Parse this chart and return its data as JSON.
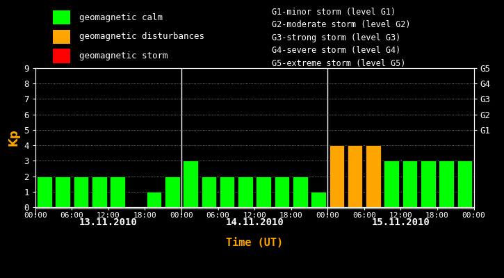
{
  "background_color": "#000000",
  "text_color": "#ffffff",
  "orange_color": "#FFA500",
  "green_color": "#00FF00",
  "red_color": "#FF0000",
  "kp_day1": [
    2,
    2,
    2,
    2,
    2,
    0,
    1,
    2
  ],
  "kp_day2": [
    3,
    2,
    2,
    2,
    2,
    2,
    2,
    1
  ],
  "kp_day3": [
    4,
    4,
    4,
    3,
    3,
    3,
    3,
    3
  ],
  "colors_day1": [
    "#00FF00",
    "#00FF00",
    "#00FF00",
    "#00FF00",
    "#00FF00",
    "#00FF00",
    "#00FF00",
    "#00FF00"
  ],
  "colors_day2": [
    "#00FF00",
    "#00FF00",
    "#00FF00",
    "#00FF00",
    "#00FF00",
    "#00FF00",
    "#00FF00",
    "#00FF00"
  ],
  "colors_day3": [
    "#FFA500",
    "#FFA500",
    "#FFA500",
    "#00FF00",
    "#00FF00",
    "#00FF00",
    "#00FF00",
    "#00FF00"
  ],
  "day_labels": [
    "13.11.2010",
    "14.11.2010",
    "15.11.2010"
  ],
  "x_tick_labels_per_day": [
    "00:00",
    "06:00",
    "12:00",
    "18:00"
  ],
  "ylabel": "Kp",
  "xlabel": "Time (UT)",
  "ylim": [
    0,
    9
  ],
  "yticks": [
    0,
    1,
    2,
    3,
    4,
    5,
    6,
    7,
    8,
    9
  ],
  "right_yticks": [
    5,
    6,
    7,
    8,
    9
  ],
  "right_yticklabels": [
    "G1",
    "G2",
    "G3",
    "G4",
    "G5"
  ],
  "legend_items": [
    {
      "label": "geomagnetic calm",
      "color": "#00FF00"
    },
    {
      "label": "geomagnetic disturbances",
      "color": "#FFA500"
    },
    {
      "label": "geomagnetic storm",
      "color": "#FF0000"
    }
  ],
  "legend_right_lines": [
    "G1-minor storm (level G1)",
    "G2-moderate storm (level G2)",
    "G3-strong storm (level G3)",
    "G4-severe storm (level G4)",
    "G5-extreme storm (level G5)"
  ],
  "n_per_day": 8,
  "n_days": 3,
  "bar_width": 0.82
}
